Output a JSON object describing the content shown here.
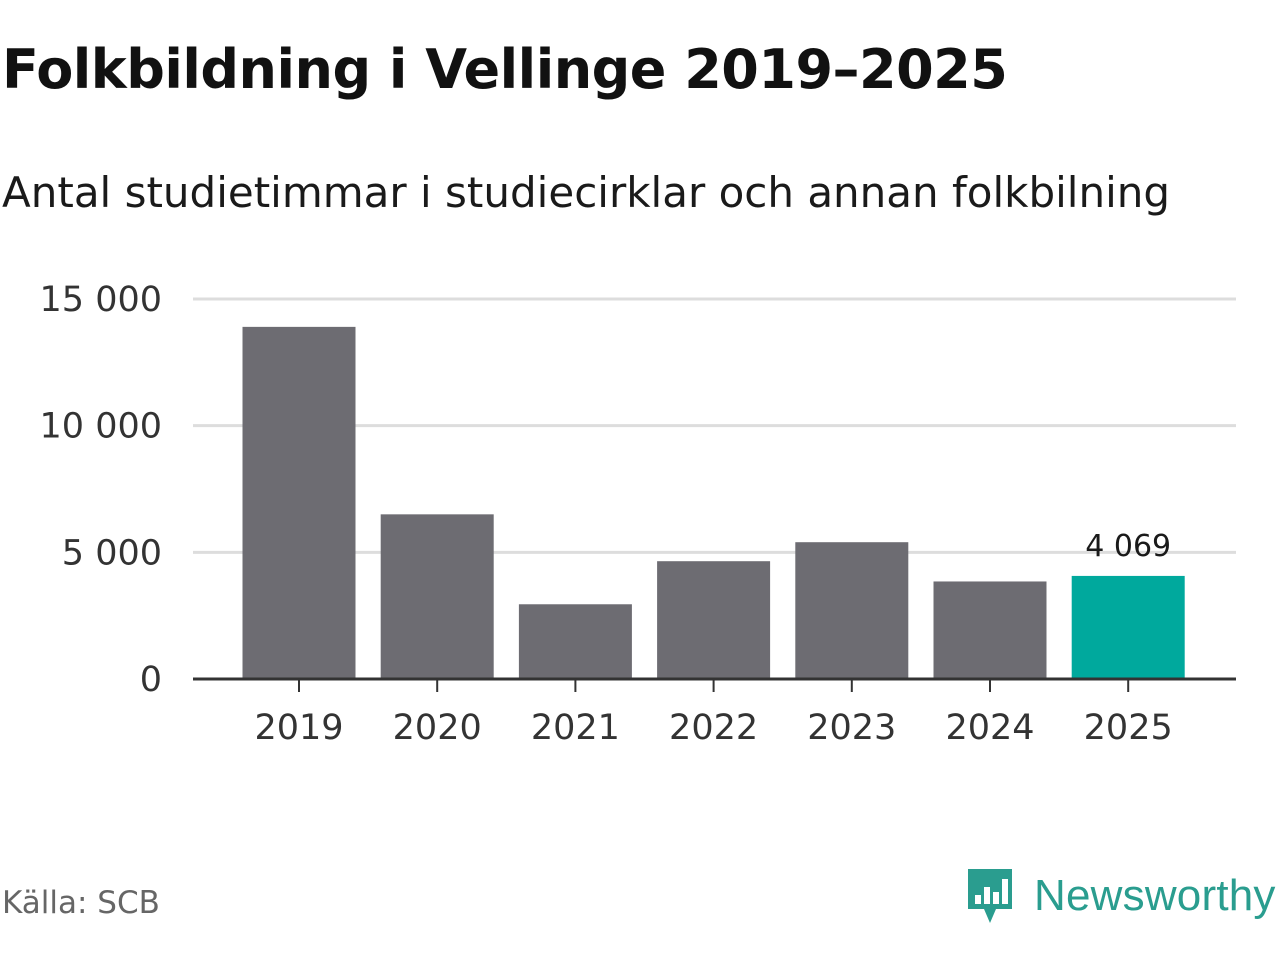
{
  "title": "Folkbildning i Vellinge 2019–2025",
  "subtitle": "Antal studietimmar i studiecirklar och annan folkbilning",
  "source": "Källa: SCB",
  "brand": {
    "name": "Newsworthy",
    "icon": "newsworthy-logo-icon",
    "color": "#2a9d8f"
  },
  "colors": {
    "bar": "#6d6c72",
    "highlight": "#00a99d",
    "grid": "#dddddd",
    "axis": "#333333"
  },
  "chart_data": {
    "type": "bar",
    "title": "Folkbildning i Vellinge 2019–2025",
    "subtitle": "Antal studietimmar i studiecirklar och annan folkbilning",
    "xlabel": "",
    "ylabel": "",
    "categories": [
      "2019",
      "2020",
      "2021",
      "2022",
      "2023",
      "2024",
      "2025"
    ],
    "values": [
      13900,
      6500,
      2950,
      4650,
      5400,
      3850,
      4069
    ],
    "ylim": [
      0,
      15000
    ],
    "yticks": [
      0,
      5000,
      10000,
      15000
    ],
    "ytick_labels": [
      "0",
      "5 000",
      "10 000",
      "15 000"
    ],
    "grid": true,
    "highlight_index": 6,
    "annotations": [
      {
        "category": "2025",
        "text": "4 069"
      }
    ]
  }
}
